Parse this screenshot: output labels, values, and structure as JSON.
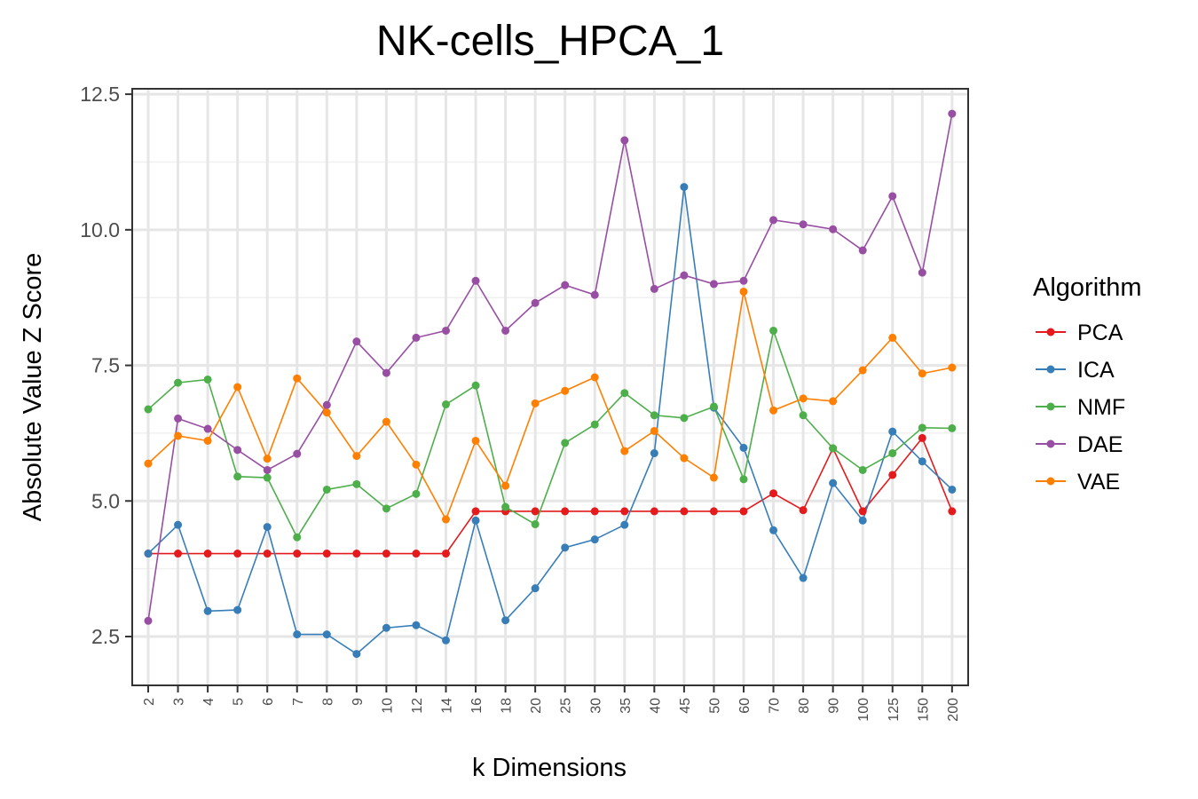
{
  "chart_data": {
    "type": "line",
    "title": "NK-cells_HPCA_1",
    "xlabel": "k Dimensions",
    "ylabel": "Absolute Value Z Score",
    "categories": [
      "2",
      "3",
      "4",
      "5",
      "6",
      "7",
      "8",
      "9",
      "10",
      "12",
      "14",
      "16",
      "18",
      "20",
      "25",
      "30",
      "35",
      "40",
      "45",
      "50",
      "60",
      "70",
      "80",
      "90",
      "100",
      "125",
      "150",
      "200"
    ],
    "ylim": [
      1.6,
      12.6
    ],
    "yticks": [
      2.5,
      5.0,
      7.5,
      10.0
    ],
    "ytick_labels": [
      "2.5",
      "5.0",
      "7.5",
      "10.0",
      "12.5"
    ],
    "yticks_all": [
      2.5,
      5.0,
      7.5,
      10.0,
      12.5
    ],
    "grid": true,
    "legend": {
      "title": "Algorithm",
      "position": "right"
    },
    "series": [
      {
        "name": "PCA",
        "color": "#e41a1c",
        "values": [
          4.03,
          4.03,
          4.03,
          4.03,
          4.03,
          4.03,
          4.03,
          4.03,
          4.03,
          4.03,
          4.03,
          4.81,
          4.81,
          4.81,
          4.81,
          4.81,
          4.81,
          4.81,
          4.81,
          4.81,
          4.81,
          5.14,
          4.83,
          5.97,
          4.81,
          5.48,
          6.16,
          4.81
        ]
      },
      {
        "name": "ICA",
        "color": "#377eb8",
        "values": [
          4.03,
          4.56,
          2.97,
          2.99,
          4.52,
          2.54,
          2.54,
          2.18,
          2.66,
          2.71,
          2.43,
          4.64,
          2.8,
          3.39,
          4.14,
          4.29,
          4.56,
          5.88,
          10.79,
          6.72,
          5.98,
          4.46,
          3.58,
          5.33,
          4.64,
          6.28,
          5.73,
          5.21
        ]
      },
      {
        "name": "NMF",
        "color": "#4daf4a",
        "values": [
          6.69,
          7.18,
          7.24,
          5.45,
          5.43,
          4.33,
          5.21,
          5.31,
          4.86,
          5.13,
          6.78,
          7.13,
          4.89,
          4.57,
          6.07,
          6.41,
          6.99,
          6.58,
          6.53,
          6.74,
          5.4,
          8.14,
          6.58,
          5.97,
          5.57,
          5.88,
          6.35,
          6.34
        ]
      },
      {
        "name": "DAE",
        "color": "#984ea3",
        "values": [
          2.79,
          6.52,
          6.33,
          5.94,
          5.57,
          5.87,
          6.77,
          7.94,
          7.36,
          8.01,
          8.14,
          9.06,
          8.14,
          8.65,
          8.98,
          8.8,
          11.65,
          8.91,
          9.16,
          9.0,
          9.06,
          10.18,
          10.1,
          10.01,
          9.62,
          10.62,
          9.21,
          12.14
        ]
      },
      {
        "name": "VAE",
        "color": "#ff7f00",
        "values": [
          5.69,
          6.2,
          6.11,
          7.1,
          5.78,
          7.26,
          6.63,
          5.83,
          6.46,
          5.67,
          4.66,
          6.11,
          5.28,
          6.8,
          7.03,
          7.28,
          5.92,
          6.29,
          5.79,
          5.43,
          8.86,
          6.67,
          6.89,
          6.84,
          7.41,
          8.01,
          7.35,
          7.46
        ]
      }
    ]
  }
}
